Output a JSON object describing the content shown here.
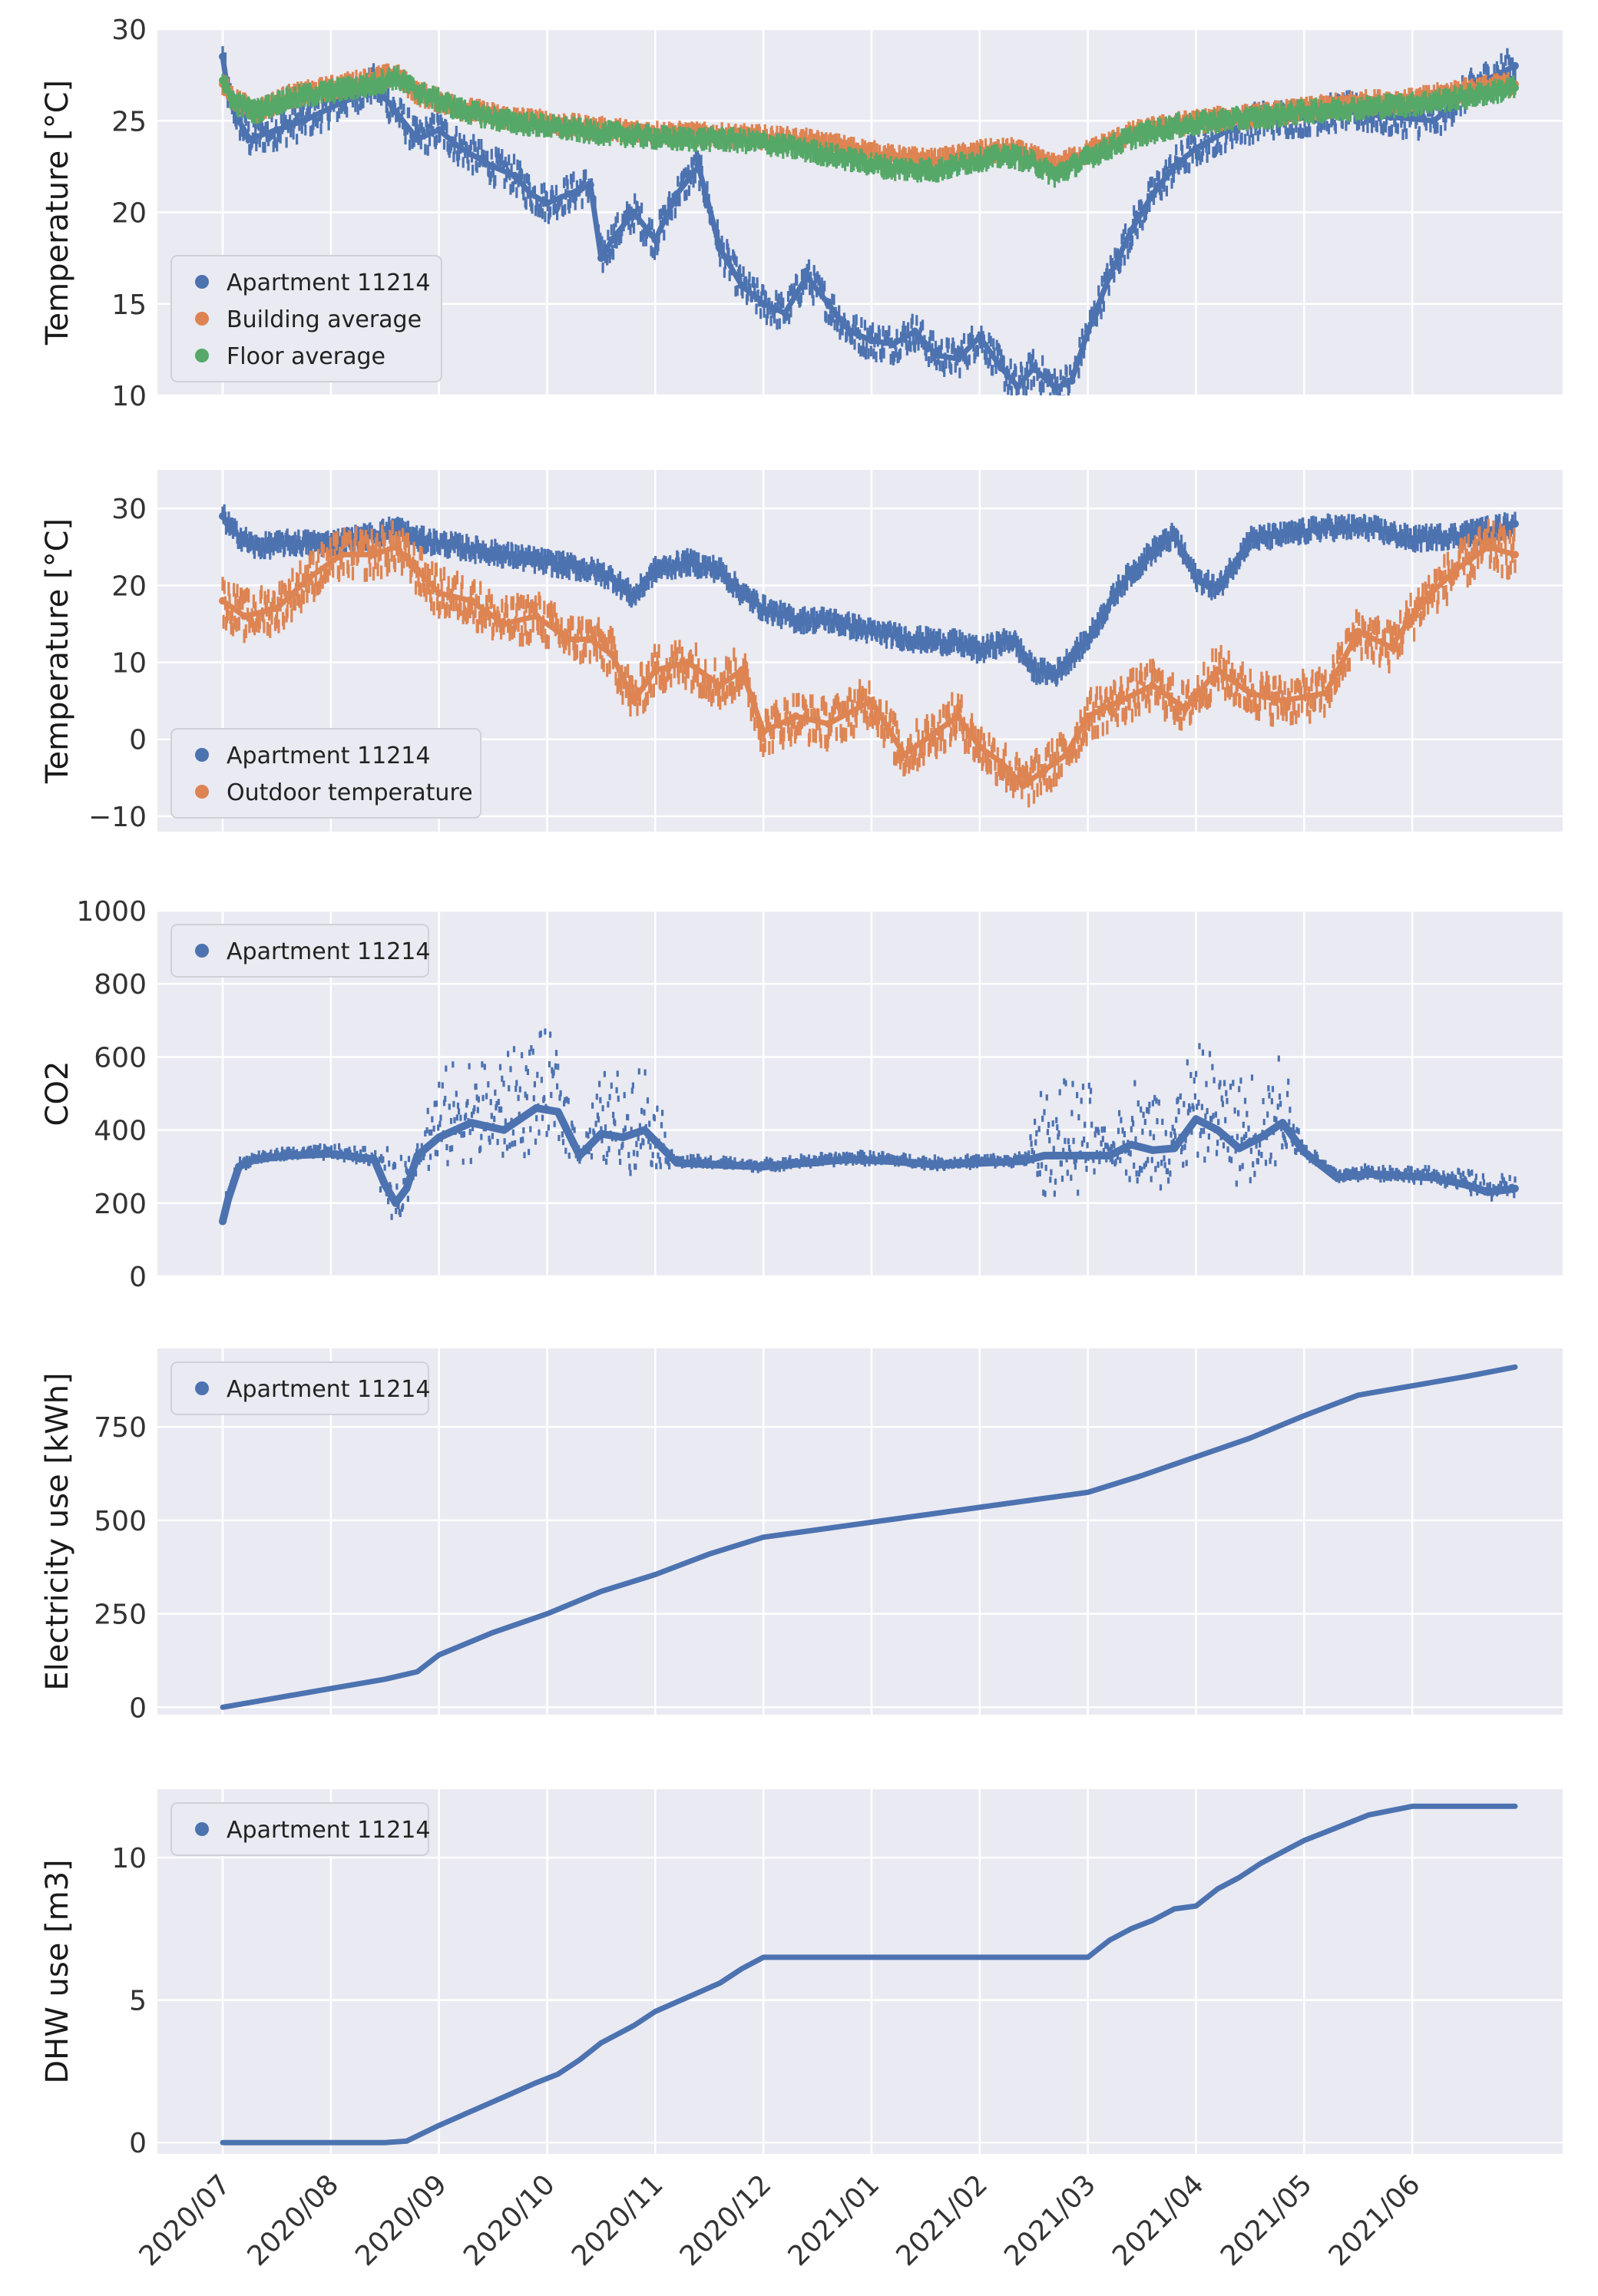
{
  "figure": {
    "time_axis": {
      "start": "2020/07",
      "end": "2021/07",
      "tick_labels": [
        "2020/07",
        "2020/08",
        "2020/09",
        "2020/10",
        "2020/11",
        "2020/12",
        "2021/01",
        "2021/02",
        "2021/03",
        "2021/04",
        "2021/05",
        "2021/06"
      ]
    }
  },
  "chart_data": [
    {
      "type": "scatter",
      "ylabel": "Temperature [°C]",
      "ylim": [
        10,
        30
      ],
      "yticks": [
        10,
        15,
        20,
        25,
        30
      ],
      "legend_position": "lower-left",
      "series": [
        {
          "name": "Apartment 11214",
          "color": "#4c72b0",
          "t": [
            0,
            0.05,
            0.15,
            0.25,
            0.5,
            0.75,
            1.1,
            1.4,
            1.6,
            1.8,
            2.0,
            2.2,
            2.5,
            2.7,
            2.85,
            3.0,
            3.2,
            3.4,
            3.5,
            3.6,
            3.8,
            4.0,
            4.2,
            4.4,
            4.6,
            4.8,
            5.0,
            5.2,
            5.4,
            5.6,
            5.8,
            6.0,
            6.2,
            6.4,
            6.6,
            6.8,
            7.0,
            7.2,
            7.35,
            7.5,
            7.7,
            7.85,
            8.0,
            8.2,
            8.4,
            8.6,
            8.8,
            9.0,
            9.3,
            9.6,
            10.0,
            10.4,
            10.8,
            11.2,
            11.6,
            11.95
          ],
          "y": [
            28.5,
            26.5,
            25.0,
            24.0,
            24.5,
            25.0,
            26.0,
            27.0,
            25.5,
            24.0,
            24.5,
            23.5,
            22.5,
            22.0,
            21.0,
            20.5,
            21.0,
            21.5,
            17.5,
            18.5,
            20.0,
            18.5,
            21.0,
            22.5,
            18.0,
            16.0,
            15.0,
            14.5,
            16.5,
            15.0,
            13.5,
            13.0,
            12.8,
            13.5,
            12.2,
            12.0,
            13.2,
            11.5,
            10.5,
            11.5,
            10.4,
            10.8,
            13.5,
            16.5,
            19.0,
            21.0,
            22.5,
            23.5,
            24.5,
            25.0,
            25.2,
            25.5,
            25.2,
            25.0,
            27.0,
            28.0
          ]
        },
        {
          "name": "Building average",
          "color": "#dd8452",
          "t": [
            0,
            0.1,
            0.3,
            0.6,
            1.0,
            1.4,
            1.6,
            1.8,
            2.2,
            2.6,
            3.0,
            3.4,
            3.8,
            4.2,
            4.6,
            5.0,
            5.4,
            5.8,
            6.2,
            6.6,
            7.0,
            7.3,
            7.5,
            7.7,
            8.0,
            8.4,
            8.8,
            9.2,
            9.6,
            10.0,
            10.5,
            11.0,
            11.5,
            11.95
          ],
          "y": [
            27.0,
            26.2,
            25.5,
            26.3,
            26.8,
            27.3,
            27.5,
            26.5,
            25.7,
            25.2,
            24.9,
            24.6,
            24.4,
            24.3,
            24.2,
            24.1,
            23.9,
            23.5,
            23.0,
            22.8,
            23.3,
            23.4,
            23.0,
            22.5,
            23.3,
            24.3,
            24.8,
            25.1,
            25.3,
            25.6,
            26.0,
            26.1,
            26.7,
            27.0
          ]
        },
        {
          "name": "Floor average",
          "color": "#55a868",
          "t": [
            0,
            0.1,
            0.3,
            0.6,
            1.0,
            1.4,
            1.6,
            1.8,
            2.2,
            2.6,
            3.0,
            3.4,
            3.8,
            4.2,
            4.6,
            5.0,
            5.4,
            5.8,
            6.2,
            6.6,
            7.0,
            7.3,
            7.5,
            7.7,
            8.0,
            8.4,
            8.8,
            9.2,
            9.6,
            10.0,
            10.5,
            11.0,
            11.5,
            11.95
          ],
          "y": [
            27.2,
            26.0,
            25.5,
            26.2,
            26.6,
            27.0,
            27.4,
            26.6,
            25.6,
            25.0,
            24.7,
            24.4,
            24.2,
            24.0,
            24.0,
            23.8,
            23.4,
            22.9,
            22.4,
            22.3,
            22.9,
            23.1,
            22.7,
            22.0,
            23.0,
            24.1,
            24.7,
            25.0,
            25.2,
            25.5,
            25.7,
            25.9,
            26.3,
            26.8
          ]
        }
      ]
    },
    {
      "type": "scatter",
      "ylabel": "Temperature [°C]",
      "ylim": [
        -12,
        35
      ],
      "yticks": [
        -10,
        0,
        10,
        20,
        30
      ],
      "legend_position": "lower-left",
      "series": [
        {
          "name": "Apartment 11214",
          "color": "#4c72b0",
          "t": [
            0,
            0.1,
            0.3,
            0.6,
            1.0,
            1.4,
            1.6,
            1.8,
            2.2,
            2.6,
            3.0,
            3.4,
            3.6,
            3.8,
            4.0,
            4.3,
            4.6,
            4.8,
            5.0,
            5.3,
            5.6,
            6.0,
            6.4,
            6.8,
            7.0,
            7.3,
            7.5,
            7.7,
            8.0,
            8.3,
            8.6,
            8.8,
            9.0,
            9.2,
            9.5,
            9.8,
            10.2,
            10.6,
            11.0,
            11.4,
            11.8,
            11.95
          ],
          "y": [
            29.0,
            27.0,
            25.0,
            25.5,
            25.5,
            26.5,
            27.5,
            26.0,
            25.0,
            24.0,
            23.0,
            22.0,
            21.0,
            18.5,
            22.0,
            23.0,
            22.0,
            19.0,
            17.0,
            15.5,
            15.5,
            14.0,
            13.0,
            12.5,
            11.5,
            13.0,
            9.0,
            8.5,
            13.0,
            20.0,
            24.5,
            26.5,
            21.0,
            19.5,
            26.0,
            26.5,
            27.5,
            27.5,
            26.0,
            26.5,
            27.5,
            28.0
          ]
        },
        {
          "name": "Outdoor temperature",
          "color": "#dd8452",
          "t": [
            0,
            0.2,
            0.5,
            0.8,
            1.1,
            1.4,
            1.6,
            1.8,
            2.0,
            2.3,
            2.6,
            2.9,
            3.2,
            3.4,
            3.6,
            3.8,
            4.0,
            4.3,
            4.6,
            4.8,
            5.0,
            5.3,
            5.6,
            6.0,
            6.3,
            6.6,
            6.8,
            7.0,
            7.2,
            7.4,
            7.6,
            7.8,
            8.0,
            8.3,
            8.6,
            8.9,
            9.2,
            9.5,
            9.8,
            10.2,
            10.5,
            10.8,
            11.1,
            11.4,
            11.7,
            11.95
          ],
          "y": [
            18,
            16,
            17,
            21,
            24,
            24,
            25,
            22,
            19,
            18,
            15,
            16,
            13,
            13,
            11,
            5,
            9,
            10,
            7,
            9,
            1,
            3,
            2,
            5,
            -2,
            1,
            3,
            -1,
            -3,
            -6,
            -4,
            -2,
            3,
            5,
            7,
            4,
            9,
            6,
            5,
            6,
            14,
            12,
            18,
            22,
            25,
            24
          ]
        }
      ]
    },
    {
      "type": "scatter",
      "ylabel": "CO2",
      "ylim": [
        0,
        1000
      ],
      "yticks": [
        0,
        200,
        400,
        600,
        800,
        1000
      ],
      "legend_position": "upper-left",
      "series": [
        {
          "name": "Apartment 11214",
          "color": "#4c72b0",
          "t": [
            0,
            0.05,
            0.15,
            0.3,
            0.6,
            1.0,
            1.4,
            1.5,
            1.6,
            1.7,
            1.8,
            2.0,
            2.3,
            2.6,
            2.9,
            3.1,
            3.3,
            3.5,
            3.7,
            3.9,
            4.2,
            4.6,
            5.0,
            5.4,
            5.8,
            6.2,
            6.6,
            7.0,
            7.4,
            7.6,
            7.8,
            8.0,
            8.2,
            8.4,
            8.6,
            8.8,
            9.0,
            9.2,
            9.4,
            9.6,
            9.8,
            10.0,
            10.3,
            10.6,
            10.9,
            11.2,
            11.5,
            11.7,
            11.95
          ],
          "y": [
            150,
            210,
            300,
            320,
            330,
            335,
            320,
            250,
            200,
            240,
            330,
            380,
            420,
            400,
            460,
            450,
            330,
            390,
            380,
            400,
            310,
            305,
            300,
            310,
            320,
            315,
            305,
            310,
            315,
            330,
            330,
            330,
            330,
            360,
            345,
            350,
            430,
            400,
            350,
            380,
            420,
            340,
            270,
            280,
            275,
            270,
            250,
            230,
            240
          ],
          "spread_y": [
            60,
            60,
            30,
            30,
            30,
            35,
            40,
            200,
            150,
            180,
            100,
            280,
            300,
            310,
            330,
            330,
            50,
            260,
            300,
            300,
            30,
            30,
            30,
            30,
            30,
            30,
            30,
            30,
            30,
            320,
            320,
            320,
            50,
            300,
            300,
            300,
            320,
            320,
            300,
            320,
            320,
            40,
            40,
            40,
            40,
            40,
            60,
            60,
            60
          ]
        }
      ]
    },
    {
      "type": "line",
      "ylabel": "Electricity use [kWh]",
      "ylim": [
        -20,
        960
      ],
      "yticks": [
        0,
        250,
        500,
        750
      ],
      "legend_position": "upper-left",
      "series": [
        {
          "name": "Apartment 11214",
          "color": "#4c72b0",
          "t": [
            0,
            0.5,
            1.0,
            1.5,
            1.8,
            2.0,
            2.5,
            3.0,
            3.5,
            4.0,
            4.5,
            5.0,
            5.5,
            6.0,
            6.5,
            7.0,
            7.5,
            8.0,
            8.5,
            9.0,
            9.5,
            10.0,
            10.5,
            11.0,
            11.5,
            11.95
          ],
          "y": [
            0,
            25,
            50,
            75,
            95,
            140,
            200,
            250,
            310,
            355,
            410,
            455,
            475,
            495,
            515,
            535,
            555,
            575,
            620,
            670,
            720,
            780,
            835,
            860,
            885,
            910
          ]
        }
      ]
    },
    {
      "type": "line",
      "ylabel": "DHW use [m3]",
      "ylim": [
        -0.4,
        12.4
      ],
      "yticks": [
        0,
        5,
        10
      ],
      "legend_position": "upper-left",
      "series": [
        {
          "name": "Apartment 11214",
          "color": "#4c72b0",
          "t": [
            0,
            0.5,
            1.0,
            1.5,
            1.7,
            2.0,
            2.3,
            2.6,
            2.9,
            3.1,
            3.3,
            3.5,
            3.8,
            4.0,
            4.3,
            4.6,
            4.8,
            5.0,
            5.5,
            6.0,
            6.5,
            7.0,
            7.5,
            7.9,
            8.0,
            8.2,
            8.4,
            8.6,
            8.8,
            9.0,
            9.2,
            9.4,
            9.6,
            9.8,
            10.0,
            10.2,
            10.4,
            10.6,
            11.0,
            11.5,
            11.95
          ],
          "y": [
            0,
            0,
            0,
            0,
            0.05,
            0.6,
            1.1,
            1.6,
            2.1,
            2.4,
            2.9,
            3.5,
            4.1,
            4.6,
            5.1,
            5.6,
            6.1,
            6.5,
            6.5,
            6.5,
            6.5,
            6.5,
            6.5,
            6.5,
            6.5,
            7.1,
            7.5,
            7.8,
            8.2,
            8.3,
            8.9,
            9.3,
            9.8,
            10.2,
            10.6,
            10.9,
            11.2,
            11.5,
            11.8,
            11.8,
            11.8
          ]
        }
      ]
    }
  ]
}
